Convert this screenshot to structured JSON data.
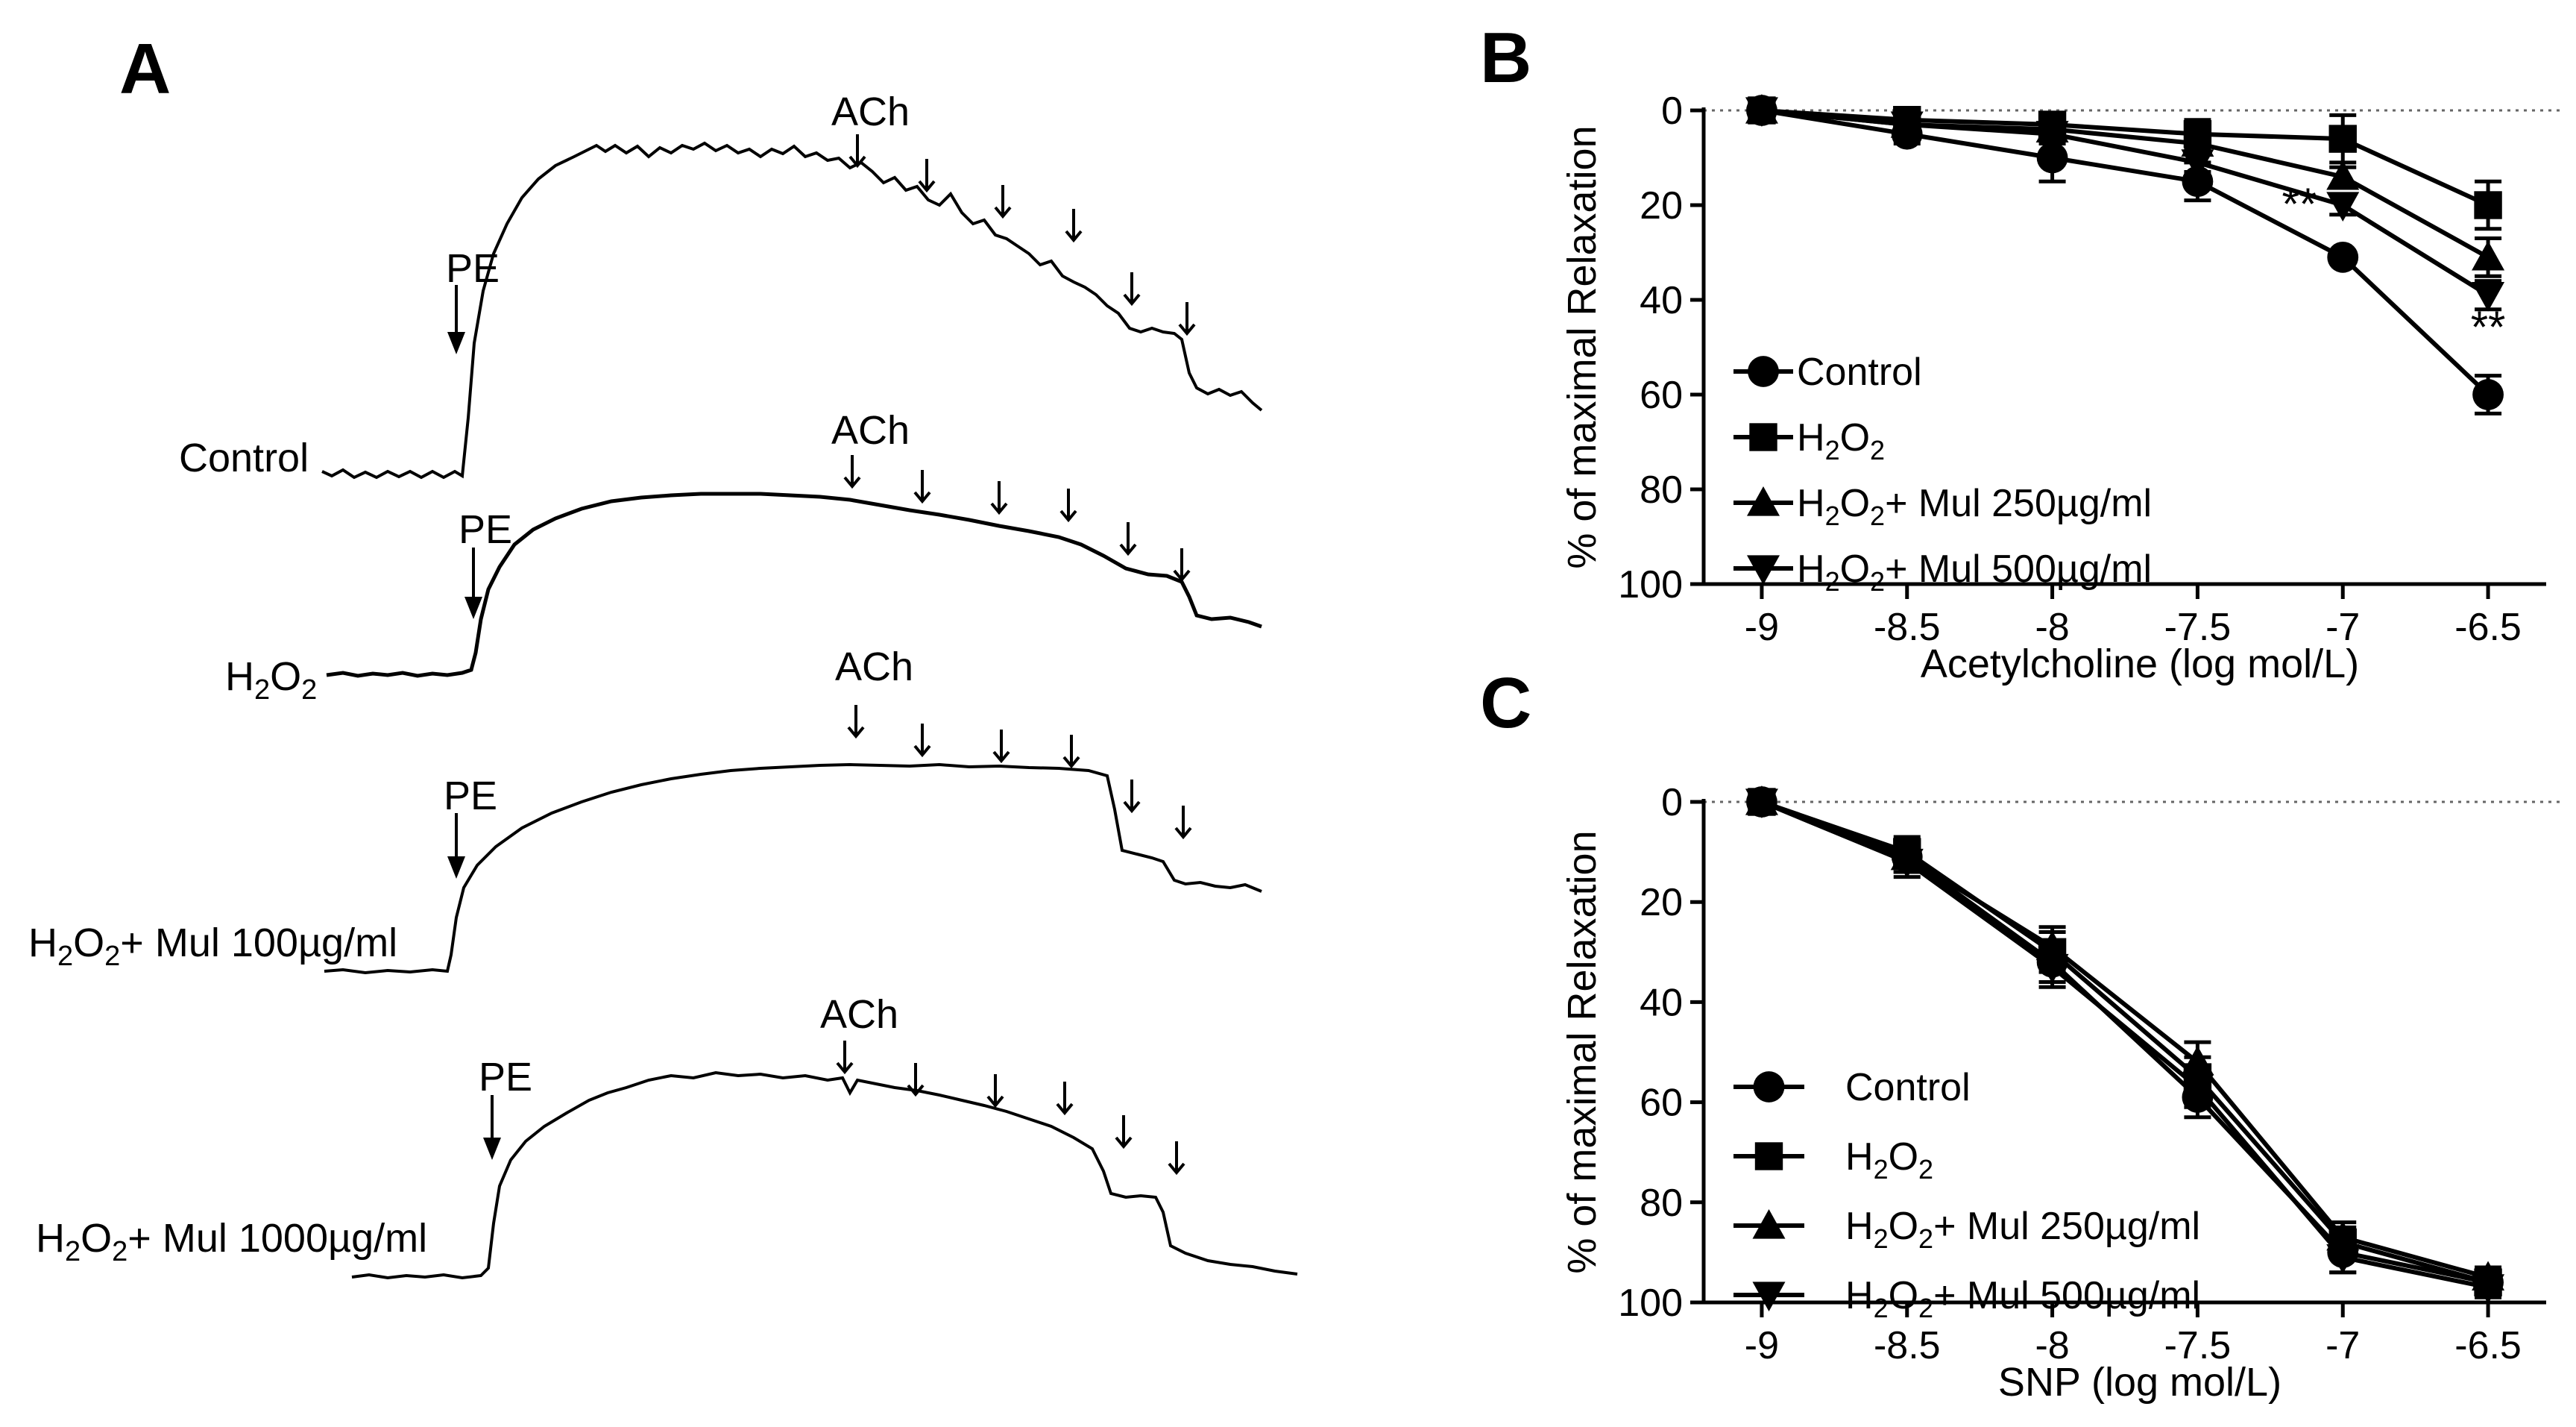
{
  "panels": {
    "A": {
      "label": "A",
      "traces": [
        {
          "label_main": "Control",
          "label_sub": "",
          "label_suffix": "",
          "pe": "PE",
          "ach": "ACh"
        },
        {
          "label_main": "H",
          "label_sub": "2",
          "label_mid": "O",
          "label_sub2": "2",
          "label_suffix": "",
          "pe": "PE",
          "ach": "ACh"
        },
        {
          "label_main": "H",
          "label_sub": "2",
          "label_mid": "O",
          "label_sub2": "2",
          "label_suffix": "+ Mul 100µg/ml",
          "pe": "PE",
          "ach": "ACh"
        },
        {
          "label_main": "H",
          "label_sub": "2",
          "label_mid": "O",
          "label_sub2": "2",
          "label_suffix": "+ Mul 1000µg/ml",
          "pe": "PE",
          "ach": "ACh"
        }
      ]
    },
    "B": {
      "label": "B",
      "significance": "**"
    },
    "C": {
      "label": "C"
    }
  },
  "chart_data": [
    {
      "panel": "B",
      "type": "line",
      "xlabel": "Acetylcholine  (log mol/L)",
      "ylabel": "% of maximal  Relaxation",
      "x": [
        -9,
        -8.5,
        -8,
        -7.5,
        -7,
        -6.5
      ],
      "xlim": [
        -9.2,
        -6.3
      ],
      "ylim": [
        0,
        100
      ],
      "y_inverted": true,
      "xticks": [
        "-9",
        "-8.5",
        "-8",
        "-7.5",
        "-7",
        "-6.5"
      ],
      "yticks": [
        "0",
        "20",
        "40",
        "60",
        "80",
        "100"
      ],
      "significance_labels": [
        {
          "x": -7.15,
          "y": 23,
          "text": "**"
        },
        {
          "x": -6.5,
          "y": 49,
          "text": "**"
        }
      ],
      "series": [
        {
          "name": "Control",
          "marker": "circle",
          "values": [
            0,
            5,
            10,
            15,
            31,
            60
          ],
          "err": [
            0,
            2,
            5,
            4,
            1,
            4
          ]
        },
        {
          "name": "H2O2",
          "marker": "square",
          "values": [
            0,
            2,
            3,
            5,
            6,
            20
          ],
          "err": [
            0,
            1,
            2,
            3,
            5,
            5
          ]
        },
        {
          "name": "H2O2+ Mul 250µg/ml",
          "marker": "triangle-up",
          "values": [
            0,
            3,
            4,
            7,
            14,
            31
          ],
          "err": [
            0,
            1,
            2,
            2,
            2,
            4
          ]
        },
        {
          "name": "H2O2+ Mul 500µg/ml",
          "marker": "triangle-down",
          "values": [
            0,
            3,
            5,
            11,
            20,
            39
          ],
          "err": [
            0,
            1,
            2,
            2,
            2,
            3
          ]
        }
      ],
      "legend": [
        {
          "main": "Control",
          "sub": "",
          "tail": ""
        },
        {
          "main": "H",
          "sub": "2",
          "mid": "O",
          "sub2": "2",
          "tail": ""
        },
        {
          "main": "H",
          "sub": "2",
          "mid": "O",
          "sub2": "2",
          "tail": "+ Mul 250µg/ml"
        },
        {
          "main": "H",
          "sub": "2",
          "mid": "O",
          "sub2": "2",
          "tail": "+ Mul 500µg/ml"
        }
      ]
    },
    {
      "panel": "C",
      "type": "line",
      "xlabel": "SNP  (log mol/L)",
      "ylabel": "% of maximal  Relaxation",
      "x": [
        -9,
        -8.5,
        -8,
        -7.5,
        -7,
        -6.5
      ],
      "xlim": [
        -9.2,
        -6.3
      ],
      "ylim": [
        0,
        100
      ],
      "y_inverted": true,
      "xticks": [
        "-9",
        "-8.5",
        "-8",
        "-7.5",
        "-7",
        "-6.5"
      ],
      "yticks": [
        "0",
        "20",
        "40",
        "60",
        "80",
        "100"
      ],
      "series": [
        {
          "name": "Control",
          "marker": "circle",
          "values": [
            0,
            11,
            32,
            59,
            90,
            96
          ],
          "err": [
            0,
            3,
            4,
            4,
            4,
            2
          ]
        },
        {
          "name": "H2O2",
          "marker": "square",
          "values": [
            0,
            10,
            30,
            55,
            88,
            96
          ],
          "err": [
            0,
            3,
            4,
            4,
            3,
            2
          ]
        },
        {
          "name": "H2O2+ Mul 250µg/ml",
          "marker": "triangle-up",
          "values": [
            0,
            11,
            29,
            52,
            87,
            95
          ],
          "err": [
            0,
            3,
            4,
            4,
            3,
            2
          ]
        },
        {
          "name": "H2O2+ Mul 500µg/ml",
          "marker": "triangle-down",
          "values": [
            0,
            12,
            33,
            57,
            91,
            97
          ],
          "err": [
            0,
            3,
            4,
            4,
            3,
            2
          ]
        }
      ],
      "legend": [
        {
          "main": "Control",
          "sub": "",
          "tail": ""
        },
        {
          "main": "H",
          "sub": "2",
          "mid": "O",
          "sub2": "2",
          "tail": ""
        },
        {
          "main": "H",
          "sub": "2",
          "mid": "O",
          "sub2": "2",
          "tail": "+ Mul 250µg/ml"
        },
        {
          "main": "H",
          "sub": "2",
          "mid": "O",
          "sub2": "2",
          "tail": "+ Mul 500µg/ml"
        }
      ]
    }
  ]
}
